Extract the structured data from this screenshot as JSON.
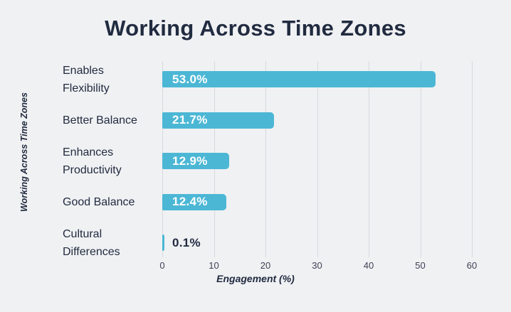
{
  "chart_data": {
    "type": "bar",
    "orientation": "horizontal",
    "title": "Working Across Time Zones",
    "xlabel": "Engagement (%)",
    "ylabel": "Working Across Time Zones",
    "categories": [
      "Enables Flexibility",
      "Better Balance",
      "Enhances Productivity",
      "Good Balance",
      "Cultural Differences"
    ],
    "categories_wrapped": [
      "Enables\nFlexibility",
      "Better Balance",
      "Enhances\nProductivity",
      "Good Balance",
      "Cultural\nDifferences"
    ],
    "values": [
      53.0,
      21.7,
      12.9,
      12.4,
      0.1
    ],
    "value_labels": [
      "53.0%",
      "21.7%",
      "12.9%",
      "12.4%",
      "0.1%"
    ],
    "xlim": [
      0,
      60
    ],
    "xticks": [
      0,
      10,
      20,
      30,
      40,
      50,
      60
    ],
    "grid": true,
    "legend": "none",
    "colors": {
      "background": "#f0f1f3",
      "bar": "#4cb7d5",
      "title_text": "#212b40",
      "category_text": "#212b40",
      "bar_label_inside": "#ffffff",
      "bar_label_outside": "#212b40",
      "gridline": "#d8d9dd",
      "tick_text": "#3c4254"
    }
  }
}
